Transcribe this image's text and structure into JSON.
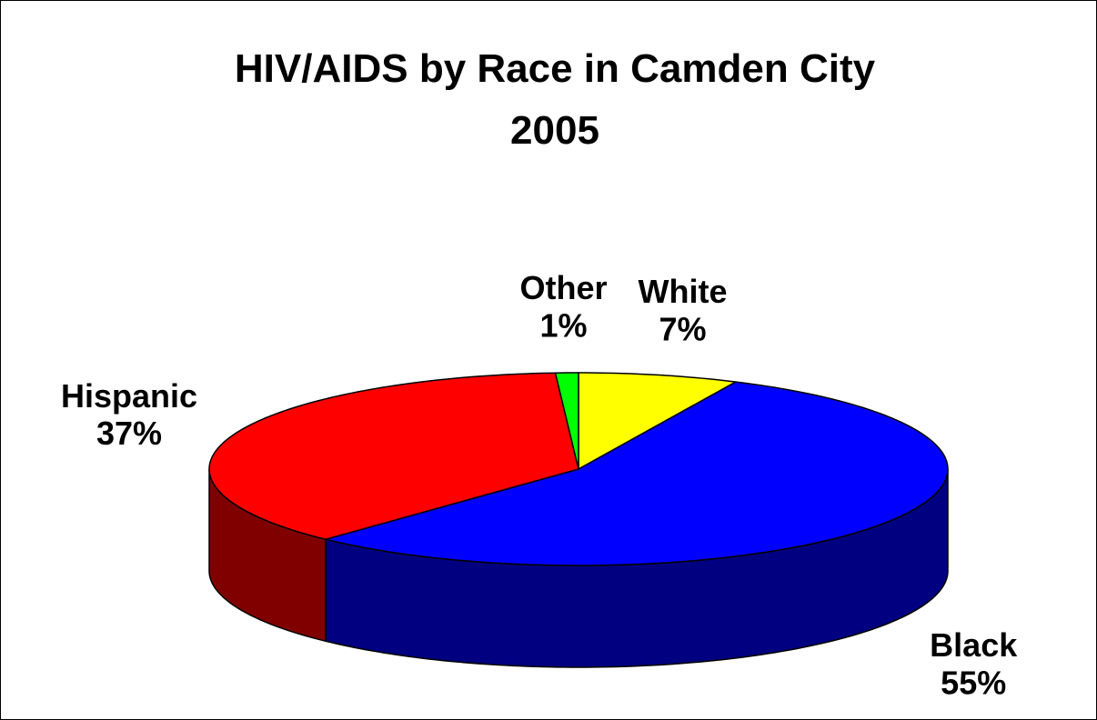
{
  "chart_data": {
    "type": "pie3d",
    "title": "HIV/AIDS by Race in Camden City",
    "subtitle": "2005",
    "categories": [
      "White",
      "Black",
      "Hispanic",
      "Other"
    ],
    "values": [
      7,
      55,
      37,
      1
    ],
    "value_labels": [
      "7%",
      "55%",
      "37%",
      "1%"
    ],
    "colors": [
      "#ffff00",
      "#0000ff",
      "#ff0000",
      "#00ff00"
    ]
  }
}
